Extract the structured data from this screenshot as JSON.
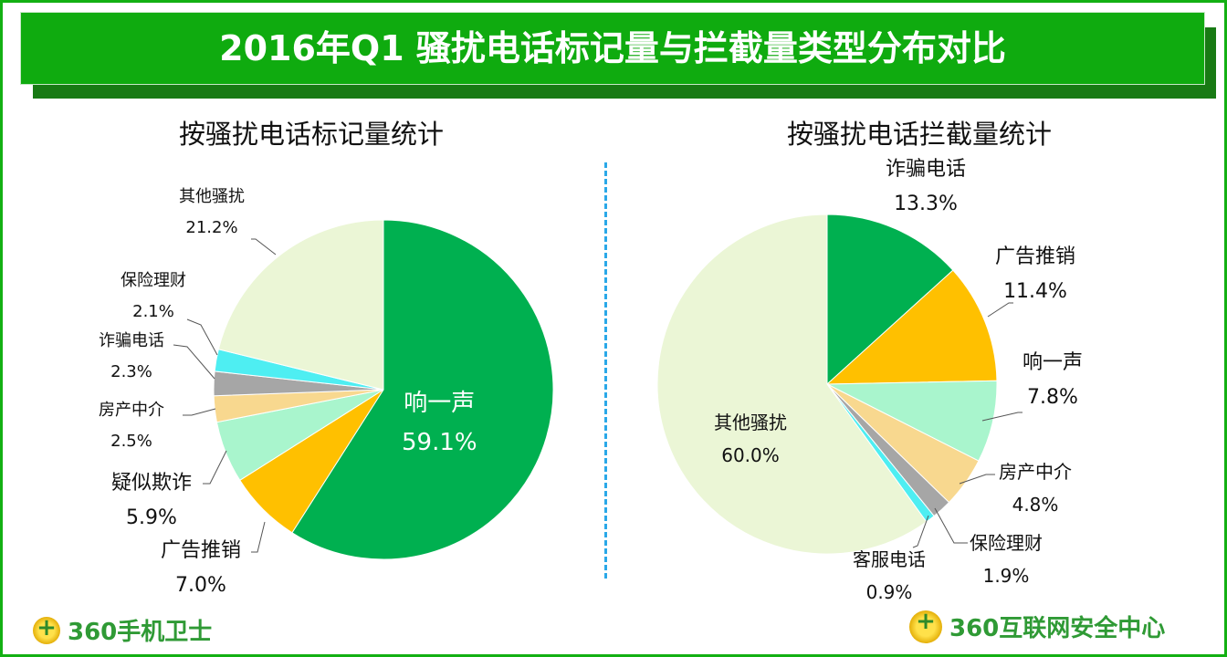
{
  "title": "2016年Q1 骚扰电话标记量与拦截量类型分布对比",
  "logos": {
    "left": "360手机卫士",
    "right": "360互联网安全中心"
  },
  "chart_data": [
    {
      "type": "pie",
      "title": "按骚扰电话标记量统计",
      "start": "top",
      "direction": "clockwise",
      "slices": [
        {
          "label": "响一声",
          "value": 59.1,
          "display": "59.1%",
          "color": "#00b050"
        },
        {
          "label": "广告推销",
          "value": 7.0,
          "display": "7.0%",
          "color": "#ffc000"
        },
        {
          "label": "疑似欺诈",
          "value": 5.9,
          "display": "5.9%",
          "color": "#a9f5cd"
        },
        {
          "label": "房产中介",
          "value": 2.5,
          "display": "2.5%",
          "color": "#f8d88f"
        },
        {
          "label": "诈骗电话",
          "value": 2.3,
          "display": "2.3%",
          "color": "#a6a6a6"
        },
        {
          "label": "保险理财",
          "value": 2.1,
          "display": "2.1%",
          "color": "#4eeef2"
        },
        {
          "label": "其他骚扰",
          "value": 21.2,
          "display": "21.2%",
          "color": "#ebf6d6"
        }
      ]
    },
    {
      "type": "pie",
      "title": "按骚扰电话拦截量统计",
      "start": "top",
      "direction": "clockwise",
      "slices": [
        {
          "label": "诈骗电话",
          "value": 13.3,
          "display": "13.3%",
          "color": "#00b050"
        },
        {
          "label": "广告推销",
          "value": 11.4,
          "display": "11.4%",
          "color": "#ffc000"
        },
        {
          "label": "响一声",
          "value": 7.8,
          "display": "7.8%",
          "color": "#a9f5cd"
        },
        {
          "label": "房产中介",
          "value": 4.8,
          "display": "4.8%",
          "color": "#f8d88f"
        },
        {
          "label": "保险理财",
          "value": 1.9,
          "display": "1.9%",
          "color": "#a6a6a6"
        },
        {
          "label": "客服电话",
          "value": 0.9,
          "display": "0.9%",
          "color": "#4eeef2"
        },
        {
          "label": "其他骚扰",
          "value": 60.0,
          "display": "60.0%",
          "color": "#ebf6d6"
        }
      ]
    }
  ]
}
